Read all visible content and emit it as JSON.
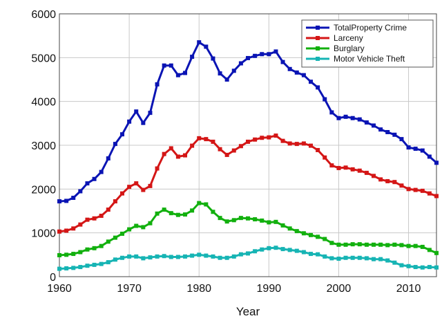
{
  "chart_data": {
    "type": "line",
    "title": "",
    "xlabel": "Year",
    "ylabel": "",
    "xlim": [
      1960,
      2014
    ],
    "ylim": [
      0,
      6000
    ],
    "xticks": [
      1960,
      1970,
      1980,
      1990,
      2000,
      2010
    ],
    "yticks": [
      0,
      1000,
      2000,
      3000,
      4000,
      5000,
      6000
    ],
    "grid": true,
    "legend_position": "top-right",
    "x": [
      1960,
      1961,
      1962,
      1963,
      1964,
      1965,
      1966,
      1967,
      1968,
      1969,
      1970,
      1971,
      1972,
      1973,
      1974,
      1975,
      1976,
      1977,
      1978,
      1979,
      1980,
      1981,
      1982,
      1983,
      1984,
      1985,
      1986,
      1987,
      1988,
      1989,
      1990,
      1991,
      1992,
      1993,
      1994,
      1995,
      1996,
      1997,
      1998,
      1999,
      2000,
      2001,
      2002,
      2003,
      2004,
      2005,
      2006,
      2007,
      2008,
      2009,
      2010,
      2011,
      2012,
      2013,
      2014
    ],
    "series": [
      {
        "name": "TotalProperty Crime",
        "color": "#0a14b4",
        "values": [
          1720,
          1730,
          1800,
          1950,
          2130,
          2230,
          2390,
          2700,
          3030,
          3250,
          3540,
          3770,
          3510,
          3740,
          4390,
          4820,
          4820,
          4600,
          4650,
          5020,
          5350,
          5250,
          4980,
          4640,
          4500,
          4700,
          4870,
          4990,
          5040,
          5080,
          5080,
          5140,
          4900,
          4740,
          4660,
          4600,
          4450,
          4320,
          4050,
          3750,
          3620,
          3650,
          3620,
          3590,
          3520,
          3450,
          3360,
          3300,
          3240,
          3140,
          2950,
          2920,
          2880,
          2740,
          2600
        ]
      },
      {
        "name": "Larceny",
        "color": "#d41616",
        "values": [
          1030,
          1050,
          1100,
          1190,
          1300,
          1330,
          1390,
          1530,
          1720,
          1900,
          2050,
          2130,
          1980,
          2070,
          2470,
          2800,
          2930,
          2740,
          2770,
          2990,
          3160,
          3140,
          3080,
          2910,
          2780,
          2880,
          2980,
          3080,
          3130,
          3170,
          3180,
          3220,
          3100,
          3040,
          3030,
          3040,
          2990,
          2890,
          2720,
          2540,
          2480,
          2490,
          2450,
          2420,
          2370,
          2300,
          2220,
          2180,
          2160,
          2080,
          2000,
          1980,
          1960,
          1900,
          1840
        ]
      },
      {
        "name": "Burglary",
        "color": "#12b00e",
        "values": [
          490,
          500,
          520,
          560,
          620,
          650,
          700,
          800,
          890,
          980,
          1080,
          1160,
          1130,
          1220,
          1440,
          1530,
          1450,
          1410,
          1420,
          1510,
          1680,
          1650,
          1480,
          1340,
          1260,
          1290,
          1340,
          1330,
          1310,
          1280,
          1240,
          1250,
          1170,
          1100,
          1040,
          990,
          950,
          910,
          860,
          770,
          730,
          730,
          740,
          740,
          730,
          730,
          730,
          720,
          730,
          720,
          700,
          700,
          680,
          610,
          540
        ]
      },
      {
        "name": "Motor Vehicle Theft",
        "color": "#16b4b4",
        "values": [
          180,
          190,
          200,
          220,
          250,
          270,
          290,
          330,
          390,
          430,
          460,
          460,
          420,
          440,
          460,
          470,
          450,
          450,
          460,
          480,
          500,
          480,
          460,
          430,
          430,
          460,
          510,
          530,
          580,
          620,
          650,
          660,
          630,
          610,
          590,
          560,
          520,
          510,
          460,
          420,
          410,
          430,
          430,
          430,
          420,
          400,
          400,
          370,
          320,
          260,
          240,
          220,
          210,
          220,
          210
        ]
      }
    ]
  }
}
